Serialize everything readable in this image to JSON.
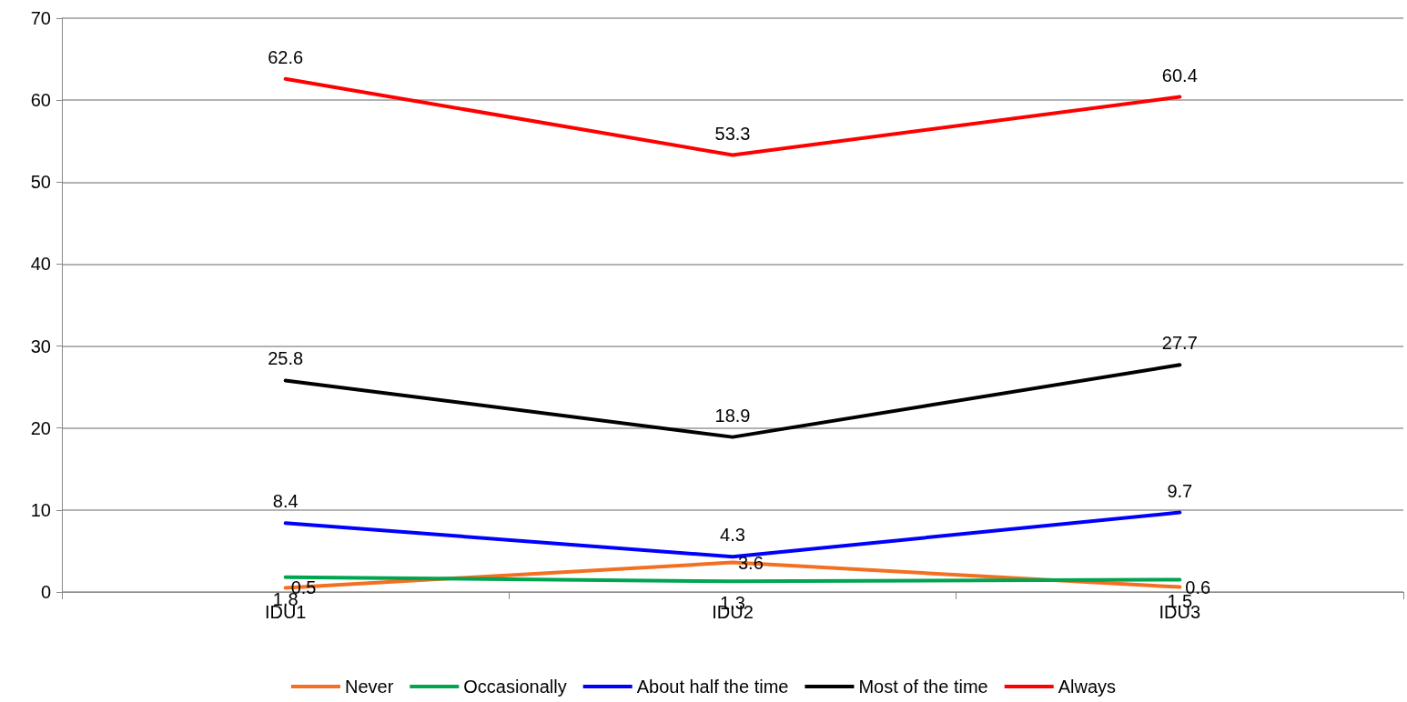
{
  "chart_data": {
    "type": "line",
    "categories": [
      "IDU1",
      "IDU2",
      "IDU3"
    ],
    "series": [
      {
        "name": "Never",
        "color": "#f36f21",
        "values": [
          0.5,
          3.6,
          0.6
        ]
      },
      {
        "name": "Occasionally",
        "color": "#00a550",
        "values": [
          1.8,
          1.3,
          1.5
        ]
      },
      {
        "name": "About half the time",
        "color": "#0000ff",
        "values": [
          8.4,
          4.3,
          9.7
        ]
      },
      {
        "name": "Most of the time",
        "color": "#000000",
        "values": [
          25.8,
          18.9,
          27.7
        ]
      },
      {
        "name": "Always",
        "color": "#ff0000",
        "values": [
          62.6,
          53.3,
          60.4
        ]
      }
    ],
    "ylim": [
      0,
      70
    ],
    "yticks": [
      0,
      10,
      20,
      30,
      40,
      50,
      60,
      70
    ],
    "grid": "y",
    "legend": "bottom",
    "marker": "none",
    "line_style": "solid",
    "data_labels": true
  }
}
